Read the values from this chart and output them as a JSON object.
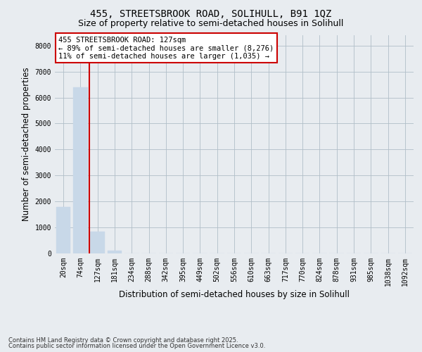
{
  "title": "455, STREETSBROOK ROAD, SOLIHULL, B91 1QZ",
  "subtitle": "Size of property relative to semi-detached houses in Solihull",
  "xlabel": "Distribution of semi-detached houses by size in Solihull",
  "ylabel": "Number of semi-detached properties",
  "categories": [
    "20sqm",
    "74sqm",
    "127sqm",
    "181sqm",
    "234sqm",
    "288sqm",
    "342sqm",
    "395sqm",
    "449sqm",
    "502sqm",
    "556sqm",
    "610sqm",
    "663sqm",
    "717sqm",
    "770sqm",
    "824sqm",
    "878sqm",
    "931sqm",
    "985sqm",
    "1038sqm",
    "1092sqm"
  ],
  "values": [
    1800,
    6400,
    850,
    100,
    0,
    0,
    0,
    0,
    0,
    0,
    0,
    0,
    0,
    0,
    0,
    0,
    0,
    0,
    0,
    0,
    0
  ],
  "bar_color": "#c8d8e8",
  "highlight_index": 2,
  "highlight_color": "#cc0000",
  "ylim": [
    0,
    8400
  ],
  "yticks": [
    0,
    1000,
    2000,
    3000,
    4000,
    5000,
    6000,
    7000,
    8000
  ],
  "property_label": "455 STREETSBROOK ROAD: 127sqm",
  "smaller_pct": "89%",
  "smaller_count": "8,276",
  "larger_pct": "11%",
  "larger_count": "1,035",
  "footnote1": "Contains HM Land Registry data © Crown copyright and database right 2025.",
  "footnote2": "Contains public sector information licensed under the Open Government Licence v3.0.",
  "background_color": "#e8ecf0",
  "plot_background": "#e8ecf0",
  "grid_color": "#b0bec8",
  "title_fontsize": 10,
  "subtitle_fontsize": 9,
  "tick_fontsize": 7,
  "axis_label_fontsize": 8.5,
  "footnote_fontsize": 6,
  "annotation_fontsize": 7.5
}
